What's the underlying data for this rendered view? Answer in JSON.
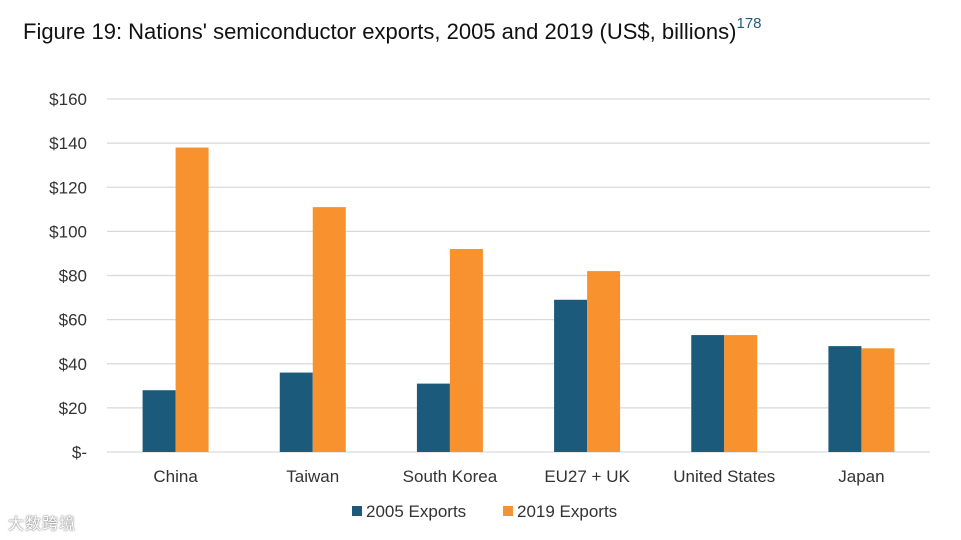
{
  "title": {
    "text": "Figure 19: Nations' semiconductor exports, 2005 and 2019 (US$, billions)",
    "footnote": "178"
  },
  "watermark": "大数跨境",
  "colors": {
    "series_2005": "#1c5a7c",
    "series_2019": "#f7922f",
    "grid": "#d9d9d9",
    "axis_text": "#333333"
  },
  "chart_data": {
    "type": "bar",
    "categories": [
      "China",
      "Taiwan",
      "South Korea",
      "EU27 + UK",
      "United States",
      "Japan"
    ],
    "series": [
      {
        "name": "2005 Exports",
        "values": [
          28,
          36,
          31,
          69,
          53,
          48
        ]
      },
      {
        "name": "2019 Exports",
        "values": [
          138,
          111,
          92,
          82,
          53,
          47
        ]
      }
    ],
    "yticks": [
      "$-",
      "$20",
      "$40",
      "$60",
      "$80",
      "$100",
      "$120",
      "$140",
      "$160"
    ],
    "ylim": [
      0,
      160
    ],
    "ystep": 20,
    "grid": true,
    "legend_position": "bottom"
  }
}
